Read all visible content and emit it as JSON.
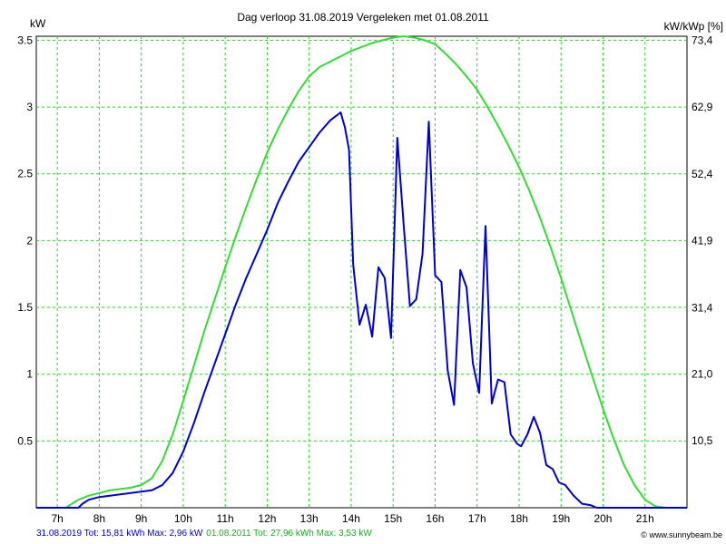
{
  "chart_data": {
    "type": "line",
    "title": "Dag  verloop 31.08.2019   Vergeleken met 01.08.2011",
    "ylabel": "kW",
    "ylabel_right": "kW/kWp [%]",
    "xlim": [
      6.5,
      22.0
    ],
    "ylim": [
      0,
      3.53
    ],
    "x_ticks": [
      7,
      8,
      9,
      10,
      11,
      12,
      13,
      14,
      15,
      16,
      17,
      18,
      19,
      20,
      21
    ],
    "x_tick_labels": [
      "7h",
      "8h",
      "9h",
      "10h",
      "11h",
      "12h",
      "13h",
      "14h",
      "15h",
      "16h",
      "17h",
      "18h",
      "19h",
      "20h",
      "21h"
    ],
    "y_ticks": [
      0.5,
      1,
      1.5,
      2,
      2.5,
      3,
      3.5
    ],
    "y_tick_labels": [
      "0.5",
      "1",
      "1.5",
      "2",
      "2.5",
      "3",
      "3.5"
    ],
    "y2_ticks": [
      10.5,
      21.0,
      31.4,
      41.9,
      52.4,
      62.9,
      73.4
    ],
    "y2_tick_labels": [
      "10,5",
      "21,0",
      "31,4",
      "41,9",
      "52,4",
      "62,9",
      "73,4"
    ],
    "grid": true,
    "series": [
      {
        "name": "31.08.2019",
        "color": "#0000cc",
        "x": [
          6.5,
          7.5,
          7.6,
          7.75,
          8.0,
          8.25,
          8.5,
          8.75,
          9.0,
          9.25,
          9.5,
          9.75,
          10.0,
          10.25,
          10.5,
          10.75,
          11.0,
          11.25,
          11.5,
          11.75,
          12.0,
          12.25,
          12.5,
          12.75,
          13.0,
          13.25,
          13.5,
          13.75,
          13.85,
          13.95,
          14.05,
          14.2,
          14.35,
          14.5,
          14.65,
          14.8,
          14.95,
          15.1,
          15.25,
          15.4,
          15.55,
          15.7,
          15.85,
          16.0,
          16.15,
          16.3,
          16.45,
          16.6,
          16.75,
          16.9,
          17.05,
          17.2,
          17.35,
          17.5,
          17.65,
          17.8,
          17.95,
          18.05,
          18.2,
          18.35,
          18.5,
          18.65,
          18.8,
          18.95,
          19.1,
          19.3,
          19.5,
          19.7,
          19.85,
          20.0,
          20.25,
          20.5,
          22.0
        ],
        "y": [
          0,
          0,
          0.03,
          0.06,
          0.08,
          0.09,
          0.1,
          0.11,
          0.12,
          0.13,
          0.17,
          0.26,
          0.42,
          0.63,
          0.86,
          1.08,
          1.3,
          1.52,
          1.72,
          1.9,
          2.08,
          2.28,
          2.44,
          2.59,
          2.7,
          2.81,
          2.9,
          2.96,
          2.85,
          2.68,
          1.82,
          1.37,
          1.52,
          1.28,
          1.8,
          1.72,
          1.27,
          2.77,
          2.12,
          1.51,
          1.56,
          1.9,
          2.89,
          1.74,
          1.69,
          1.03,
          0.77,
          1.78,
          1.65,
          1.08,
          0.86,
          2.11,
          0.78,
          0.96,
          0.94,
          0.55,
          0.48,
          0.46,
          0.55,
          0.68,
          0.56,
          0.32,
          0.29,
          0.19,
          0.17,
          0.09,
          0.03,
          0.02,
          0,
          0,
          0,
          0,
          0
        ]
      },
      {
        "name": "01.08.2011",
        "color": "#33dd33",
        "x": [
          6.5,
          7.2,
          7.5,
          7.75,
          8.0,
          8.25,
          8.5,
          8.75,
          9.0,
          9.25,
          9.5,
          9.75,
          10.0,
          10.25,
          10.5,
          10.75,
          11.0,
          11.25,
          11.5,
          11.75,
          12.0,
          12.25,
          12.5,
          12.75,
          13.0,
          13.25,
          13.5,
          13.75,
          14.0,
          14.25,
          14.5,
          14.75,
          15.0,
          15.25,
          15.5,
          15.75,
          16.0,
          16.25,
          16.5,
          16.75,
          17.0,
          17.25,
          17.5,
          17.75,
          18.0,
          18.25,
          18.5,
          18.75,
          19.0,
          19.25,
          19.5,
          19.75,
          20.0,
          20.25,
          20.5,
          20.75,
          21.0,
          21.25,
          21.5,
          21.75,
          22.0
        ],
        "y": [
          0,
          0,
          0.06,
          0.09,
          0.11,
          0.13,
          0.14,
          0.15,
          0.17,
          0.22,
          0.35,
          0.55,
          0.8,
          1.06,
          1.32,
          1.56,
          1.8,
          2.03,
          2.25,
          2.46,
          2.66,
          2.83,
          2.98,
          3.12,
          3.23,
          3.3,
          3.34,
          3.38,
          3.42,
          3.45,
          3.48,
          3.5,
          3.52,
          3.53,
          3.52,
          3.5,
          3.47,
          3.4,
          3.32,
          3.23,
          3.13,
          3.0,
          2.86,
          2.71,
          2.55,
          2.37,
          2.17,
          1.95,
          1.72,
          1.47,
          1.22,
          0.98,
          0.74,
          0.52,
          0.32,
          0.17,
          0.06,
          0.01,
          0,
          0,
          0
        ]
      }
    ],
    "footer": {
      "series1": "31.08.2019 Tot: 15,81 kWh Max: 2,96 kW",
      "series2": "01.08.2011 Tot: 27,96 kWh Max: 3,53 kW"
    },
    "brand": "www.sunnybeam.be"
  }
}
